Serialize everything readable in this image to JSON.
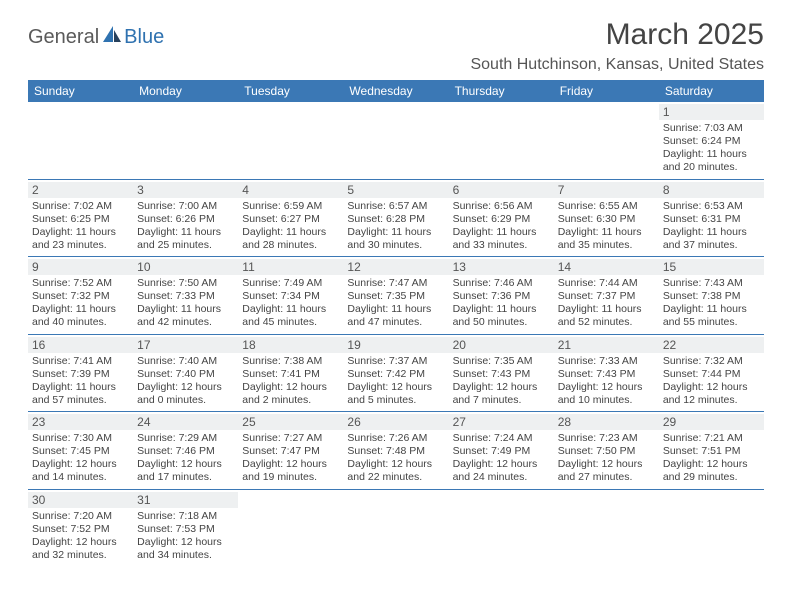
{
  "logo": {
    "text1": "General",
    "text2": "Blue",
    "accent": "#2f72b0"
  },
  "title": "March 2025",
  "location": "South Hutchinson, Kansas, United States",
  "colors": {
    "header_bg": "#3b78b5",
    "daybar_bg": "#eef0f1",
    "border": "#3b78b5"
  },
  "daynames": [
    "Sunday",
    "Monday",
    "Tuesday",
    "Wednesday",
    "Thursday",
    "Friday",
    "Saturday"
  ],
  "weeks": [
    [
      null,
      null,
      null,
      null,
      null,
      null,
      {
        "n": "1",
        "sr": "Sunrise: 7:03 AM",
        "ss": "Sunset: 6:24 PM",
        "dl1": "Daylight: 11 hours",
        "dl2": "and 20 minutes."
      }
    ],
    [
      {
        "n": "2",
        "sr": "Sunrise: 7:02 AM",
        "ss": "Sunset: 6:25 PM",
        "dl1": "Daylight: 11 hours",
        "dl2": "and 23 minutes."
      },
      {
        "n": "3",
        "sr": "Sunrise: 7:00 AM",
        "ss": "Sunset: 6:26 PM",
        "dl1": "Daylight: 11 hours",
        "dl2": "and 25 minutes."
      },
      {
        "n": "4",
        "sr": "Sunrise: 6:59 AM",
        "ss": "Sunset: 6:27 PM",
        "dl1": "Daylight: 11 hours",
        "dl2": "and 28 minutes."
      },
      {
        "n": "5",
        "sr": "Sunrise: 6:57 AM",
        "ss": "Sunset: 6:28 PM",
        "dl1": "Daylight: 11 hours",
        "dl2": "and 30 minutes."
      },
      {
        "n": "6",
        "sr": "Sunrise: 6:56 AM",
        "ss": "Sunset: 6:29 PM",
        "dl1": "Daylight: 11 hours",
        "dl2": "and 33 minutes."
      },
      {
        "n": "7",
        "sr": "Sunrise: 6:55 AM",
        "ss": "Sunset: 6:30 PM",
        "dl1": "Daylight: 11 hours",
        "dl2": "and 35 minutes."
      },
      {
        "n": "8",
        "sr": "Sunrise: 6:53 AM",
        "ss": "Sunset: 6:31 PM",
        "dl1": "Daylight: 11 hours",
        "dl2": "and 37 minutes."
      }
    ],
    [
      {
        "n": "9",
        "sr": "Sunrise: 7:52 AM",
        "ss": "Sunset: 7:32 PM",
        "dl1": "Daylight: 11 hours",
        "dl2": "and 40 minutes."
      },
      {
        "n": "10",
        "sr": "Sunrise: 7:50 AM",
        "ss": "Sunset: 7:33 PM",
        "dl1": "Daylight: 11 hours",
        "dl2": "and 42 minutes."
      },
      {
        "n": "11",
        "sr": "Sunrise: 7:49 AM",
        "ss": "Sunset: 7:34 PM",
        "dl1": "Daylight: 11 hours",
        "dl2": "and 45 minutes."
      },
      {
        "n": "12",
        "sr": "Sunrise: 7:47 AM",
        "ss": "Sunset: 7:35 PM",
        "dl1": "Daylight: 11 hours",
        "dl2": "and 47 minutes."
      },
      {
        "n": "13",
        "sr": "Sunrise: 7:46 AM",
        "ss": "Sunset: 7:36 PM",
        "dl1": "Daylight: 11 hours",
        "dl2": "and 50 minutes."
      },
      {
        "n": "14",
        "sr": "Sunrise: 7:44 AM",
        "ss": "Sunset: 7:37 PM",
        "dl1": "Daylight: 11 hours",
        "dl2": "and 52 minutes."
      },
      {
        "n": "15",
        "sr": "Sunrise: 7:43 AM",
        "ss": "Sunset: 7:38 PM",
        "dl1": "Daylight: 11 hours",
        "dl2": "and 55 minutes."
      }
    ],
    [
      {
        "n": "16",
        "sr": "Sunrise: 7:41 AM",
        "ss": "Sunset: 7:39 PM",
        "dl1": "Daylight: 11 hours",
        "dl2": "and 57 minutes."
      },
      {
        "n": "17",
        "sr": "Sunrise: 7:40 AM",
        "ss": "Sunset: 7:40 PM",
        "dl1": "Daylight: 12 hours",
        "dl2": "and 0 minutes."
      },
      {
        "n": "18",
        "sr": "Sunrise: 7:38 AM",
        "ss": "Sunset: 7:41 PM",
        "dl1": "Daylight: 12 hours",
        "dl2": "and 2 minutes."
      },
      {
        "n": "19",
        "sr": "Sunrise: 7:37 AM",
        "ss": "Sunset: 7:42 PM",
        "dl1": "Daylight: 12 hours",
        "dl2": "and 5 minutes."
      },
      {
        "n": "20",
        "sr": "Sunrise: 7:35 AM",
        "ss": "Sunset: 7:43 PM",
        "dl1": "Daylight: 12 hours",
        "dl2": "and 7 minutes."
      },
      {
        "n": "21",
        "sr": "Sunrise: 7:33 AM",
        "ss": "Sunset: 7:43 PM",
        "dl1": "Daylight: 12 hours",
        "dl2": "and 10 minutes."
      },
      {
        "n": "22",
        "sr": "Sunrise: 7:32 AM",
        "ss": "Sunset: 7:44 PM",
        "dl1": "Daylight: 12 hours",
        "dl2": "and 12 minutes."
      }
    ],
    [
      {
        "n": "23",
        "sr": "Sunrise: 7:30 AM",
        "ss": "Sunset: 7:45 PM",
        "dl1": "Daylight: 12 hours",
        "dl2": "and 14 minutes."
      },
      {
        "n": "24",
        "sr": "Sunrise: 7:29 AM",
        "ss": "Sunset: 7:46 PM",
        "dl1": "Daylight: 12 hours",
        "dl2": "and 17 minutes."
      },
      {
        "n": "25",
        "sr": "Sunrise: 7:27 AM",
        "ss": "Sunset: 7:47 PM",
        "dl1": "Daylight: 12 hours",
        "dl2": "and 19 minutes."
      },
      {
        "n": "26",
        "sr": "Sunrise: 7:26 AM",
        "ss": "Sunset: 7:48 PM",
        "dl1": "Daylight: 12 hours",
        "dl2": "and 22 minutes."
      },
      {
        "n": "27",
        "sr": "Sunrise: 7:24 AM",
        "ss": "Sunset: 7:49 PM",
        "dl1": "Daylight: 12 hours",
        "dl2": "and 24 minutes."
      },
      {
        "n": "28",
        "sr": "Sunrise: 7:23 AM",
        "ss": "Sunset: 7:50 PM",
        "dl1": "Daylight: 12 hours",
        "dl2": "and 27 minutes."
      },
      {
        "n": "29",
        "sr": "Sunrise: 7:21 AM",
        "ss": "Sunset: 7:51 PM",
        "dl1": "Daylight: 12 hours",
        "dl2": "and 29 minutes."
      }
    ],
    [
      {
        "n": "30",
        "sr": "Sunrise: 7:20 AM",
        "ss": "Sunset: 7:52 PM",
        "dl1": "Daylight: 12 hours",
        "dl2": "and 32 minutes."
      },
      {
        "n": "31",
        "sr": "Sunrise: 7:18 AM",
        "ss": "Sunset: 7:53 PM",
        "dl1": "Daylight: 12 hours",
        "dl2": "and 34 minutes."
      },
      null,
      null,
      null,
      null,
      null
    ]
  ]
}
